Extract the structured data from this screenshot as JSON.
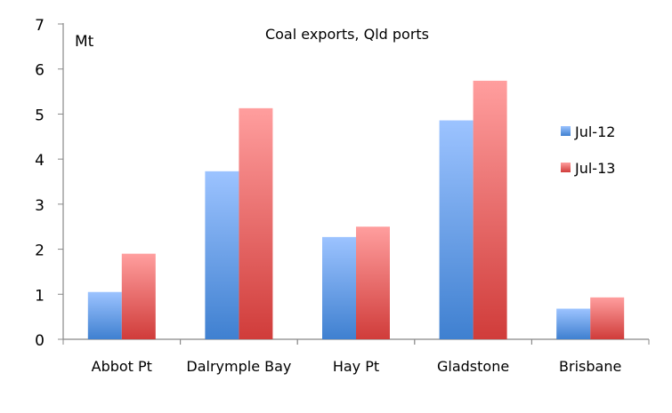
{
  "chart_data": {
    "type": "bar",
    "title": "Coal exports, Qld ports",
    "ylabel": "Mt",
    "xlabel": "",
    "ylim": [
      0,
      7
    ],
    "yticks": [
      0,
      1,
      2,
      3,
      4,
      5,
      6,
      7
    ],
    "categories": [
      "Abbot Pt",
      "Dalrymple Bay",
      "Hay Pt",
      "Gladstone",
      "Brisbane"
    ],
    "series": [
      {
        "name": "Jul-12",
        "values": [
          1.05,
          3.73,
          2.27,
          4.86,
          0.68
        ],
        "color_top": "#9cc3ff",
        "color_bottom": "#3f80d0"
      },
      {
        "name": "Jul-13",
        "values": [
          1.9,
          5.13,
          2.5,
          5.74,
          0.93
        ],
        "color_top": "#ff9e9e",
        "color_bottom": "#d03c3a"
      }
    ],
    "grid": false,
    "legend": "right"
  }
}
